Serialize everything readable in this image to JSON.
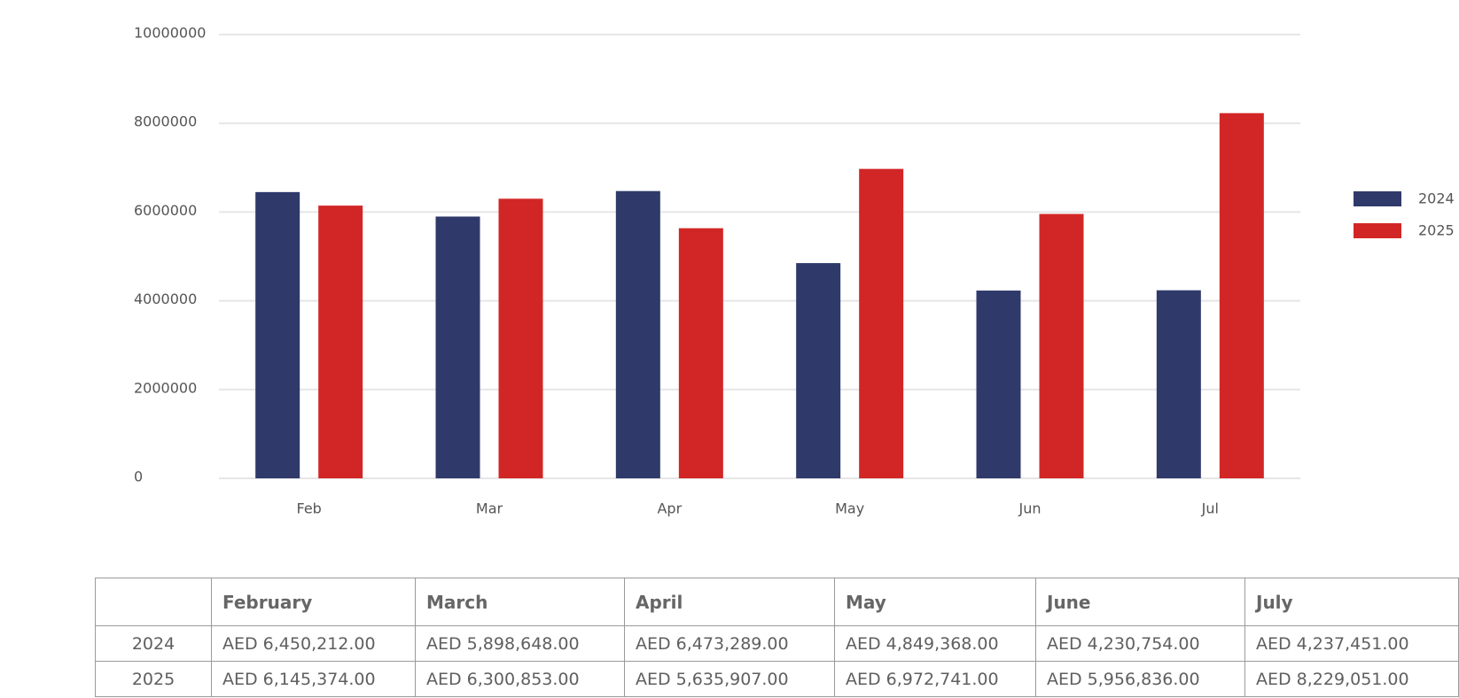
{
  "chart_data": {
    "type": "bar",
    "categories": [
      "Feb",
      "Mar",
      "Apr",
      "May",
      "Jun",
      "Jul"
    ],
    "series": [
      {
        "name": "2024",
        "color": "#2f3a6b",
        "values": [
          6450212,
          5898648,
          6473289,
          4849368,
          4230754,
          4237451
        ]
      },
      {
        "name": "2025",
        "color": "#d22626",
        "values": [
          6145374,
          6300853,
          5635907,
          6972741,
          5956836,
          8229051
        ]
      }
    ],
    "ylim": [
      0,
      10000000
    ],
    "yticks": [
      0,
      2000000,
      4000000,
      6000000,
      8000000,
      10000000
    ],
    "ytick_labels": [
      "0",
      "2000000",
      "4000000",
      "6000000",
      "8000000",
      "10000000"
    ],
    "grid": true,
    "legend": "right"
  },
  "table": {
    "headers": [
      "",
      "February",
      "March",
      "April",
      "May",
      "June",
      "July"
    ],
    "rows": [
      {
        "label": "2024",
        "cells": [
          "AED 6,450,212.00",
          "AED 5,898,648.00",
          "AED 6,473,289.00",
          "AED 4,849,368.00",
          "AED 4,230,754.00",
          "AED 4,237,451.00"
        ]
      },
      {
        "label": "2025",
        "cells": [
          "AED 6,145,374.00",
          "AED 6,300,853.00",
          "AED 5,635,907.00",
          "AED 6,972,741.00",
          "AED 5,956,836.00",
          "AED 8,229,051.00"
        ]
      }
    ]
  }
}
